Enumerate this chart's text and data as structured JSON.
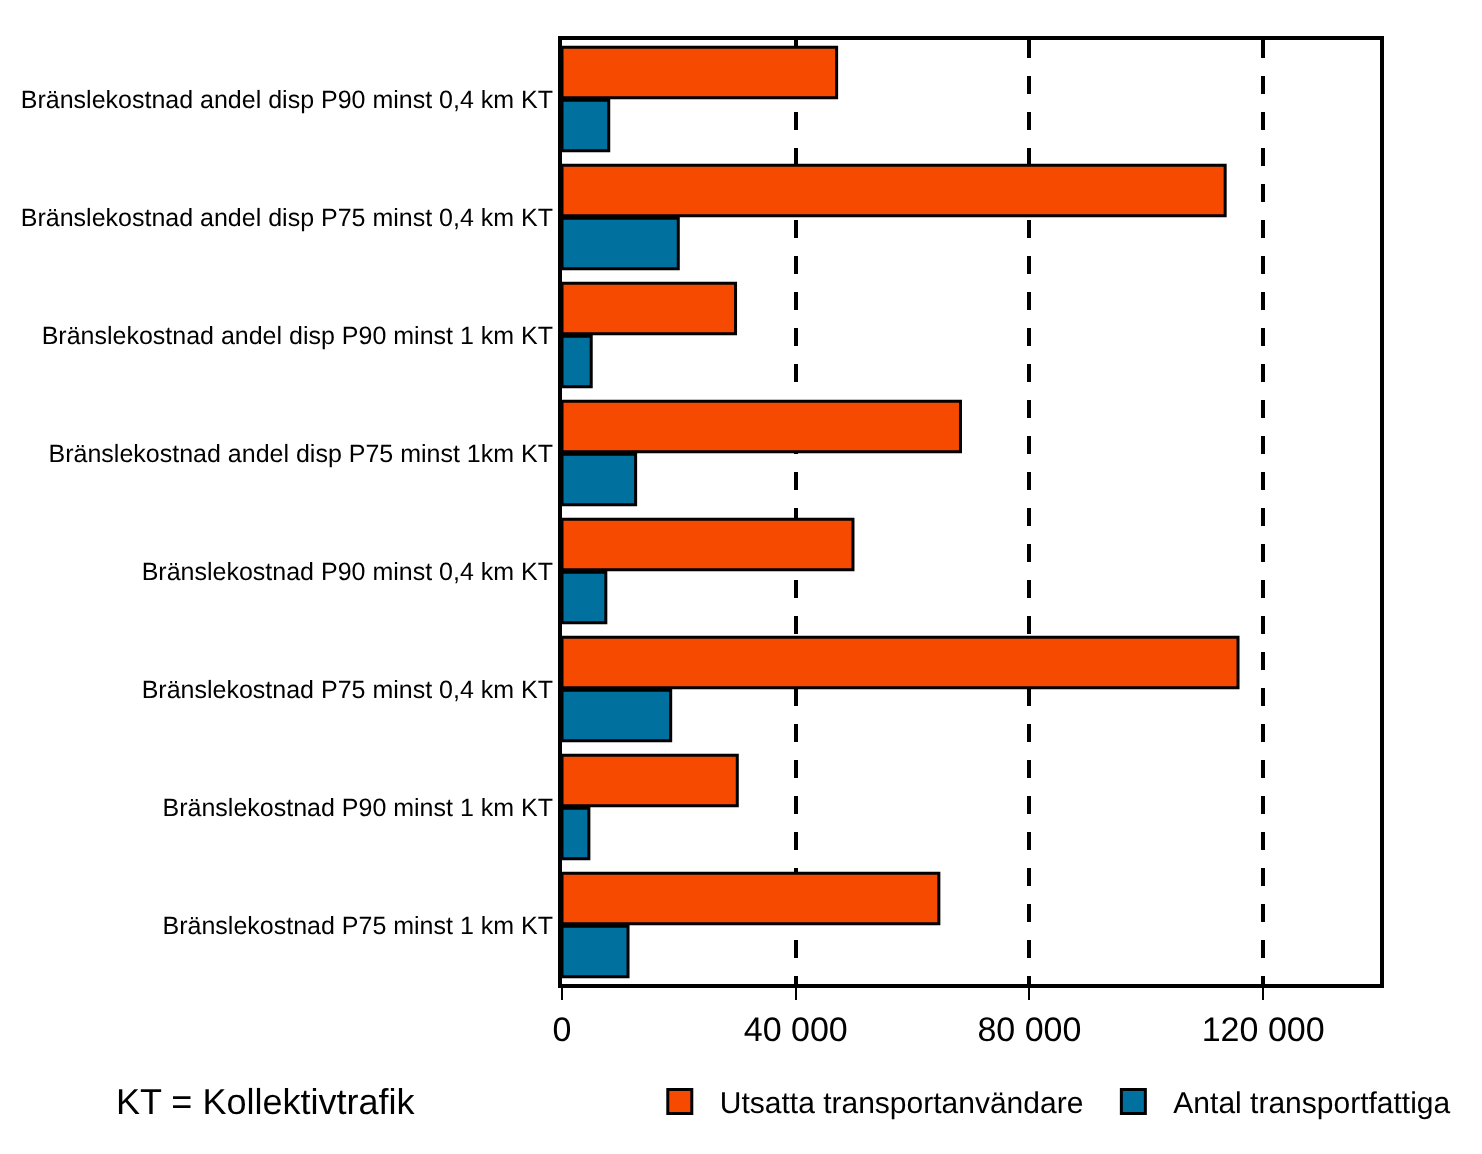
{
  "chart_data": {
    "type": "bar",
    "orientation": "horizontal",
    "categories": [
      "Bränslekostnad andel disp P90 minst 0,4 km KT",
      "Bränslekostnad andel disp P75 minst 0,4 km KT",
      "Bränslekostnad andel disp P90 minst 1 km KT",
      "Bränslekostnad andel disp P75 minst 1km KT",
      "Bränslekostnad P90 minst 0,4 km KT",
      "Bränslekostnad P75 minst 0,4 km KT",
      "Bränslekostnad P90 minst 1 km KT",
      "Bränslekostnad P75 minst 1 km KT"
    ],
    "series": [
      {
        "name": "Utsatta transportanvändare",
        "color": "#f64a00",
        "values": [
          47000,
          113500,
          29700,
          68200,
          49800,
          115700,
          30000,
          64500
        ]
      },
      {
        "name": "Antal transportfattiga",
        "color": "#00719e",
        "values": [
          8000,
          19900,
          5000,
          12600,
          7500,
          18600,
          4600,
          11300
        ]
      }
    ],
    "xlim": [
      0,
      140000
    ],
    "xticks": [
      0,
      {
        "value": 40000,
        "label": "40 000"
      },
      {
        "value": 80000,
        "label": "80 000"
      },
      {
        "value": 120000,
        "label": "120 000"
      }
    ],
    "grid": "x",
    "line_style": "dashed",
    "legend": "bottom",
    "annotations": [
      "KT = Kollektivtrafik"
    ]
  }
}
